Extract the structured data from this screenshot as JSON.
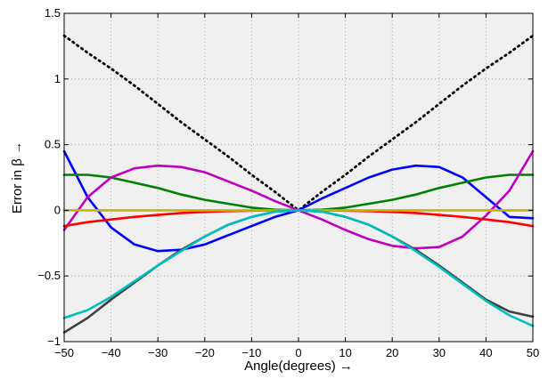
{
  "chart_data": {
    "type": "line",
    "xlabel": "Angle(degrees) →",
    "ylabel": "Error in β →",
    "xlim": [
      -50,
      50
    ],
    "ylim": [
      -1,
      1.5
    ],
    "xticks": [
      -50,
      -40,
      -30,
      -20,
      -10,
      0,
      10,
      20,
      30,
      40,
      50
    ],
    "yticks": [
      -1,
      -0.5,
      0,
      0.5,
      1,
      1.5
    ],
    "xtick_labels": [
      "−50",
      "−40",
      "−30",
      "−20",
      "−10",
      "0",
      "10",
      "20",
      "30",
      "40",
      "50"
    ],
    "ytick_labels": [
      "−1",
      "−0.5",
      "0",
      "0.5",
      "1",
      "1.5"
    ],
    "grid": true,
    "background": "#f0f0f0",
    "series": [
      {
        "color": "#000000",
        "dash": "dotted",
        "x": [
          -50,
          -45,
          -40,
          -35,
          -30,
          -25,
          -20,
          -15,
          -10,
          -5,
          0,
          5,
          10,
          15,
          20,
          25,
          30,
          35,
          40,
          45,
          50
        ],
        "y": [
          1.33,
          1.2,
          1.08,
          0.95,
          0.81,
          0.67,
          0.54,
          0.41,
          0.27,
          0.14,
          0.0,
          0.14,
          0.27,
          0.41,
          0.54,
          0.67,
          0.81,
          0.95,
          1.08,
          1.2,
          1.33
        ]
      },
      {
        "color": "#0000ff",
        "x": [
          -50,
          -45,
          -40,
          -35,
          -30,
          -25,
          -20,
          -15,
          -10,
          -5,
          0,
          5,
          10,
          15,
          20,
          25,
          30,
          35,
          40,
          45,
          50
        ],
        "y": [
          0.45,
          0.1,
          -0.13,
          -0.26,
          -0.31,
          -0.3,
          -0.26,
          -0.19,
          -0.12,
          -0.05,
          0.0,
          0.09,
          0.17,
          0.25,
          0.31,
          0.34,
          0.33,
          0.25,
          0.1,
          -0.05,
          -0.06
        ]
      },
      {
        "color": "#008000",
        "x": [
          -50,
          -45,
          -40,
          -35,
          -30,
          -25,
          -20,
          -15,
          -10,
          -5,
          0,
          5,
          10,
          15,
          20,
          25,
          30,
          35,
          40,
          45,
          50
        ],
        "y": [
          0.27,
          0.27,
          0.25,
          0.21,
          0.17,
          0.12,
          0.08,
          0.05,
          0.02,
          0.005,
          0.0,
          0.005,
          0.02,
          0.05,
          0.08,
          0.12,
          0.17,
          0.21,
          0.25,
          0.27,
          0.27
        ]
      },
      {
        "color": "#bf00bf",
        "x": [
          -50,
          -45,
          -40,
          -35,
          -30,
          -25,
          -20,
          -15,
          -10,
          -5,
          0,
          5,
          10,
          15,
          20,
          25,
          30,
          35,
          40,
          45,
          50
        ],
        "y": [
          -0.15,
          0.1,
          0.25,
          0.32,
          0.34,
          0.33,
          0.29,
          0.22,
          0.15,
          0.07,
          0.0,
          -0.07,
          -0.15,
          -0.22,
          -0.27,
          -0.29,
          -0.28,
          -0.2,
          -0.04,
          0.15,
          0.45
        ]
      },
      {
        "color": "#ff0000",
        "x": [
          -50,
          -45,
          -40,
          -35,
          -30,
          -25,
          -20,
          -15,
          -10,
          -5,
          0,
          5,
          10,
          15,
          20,
          25,
          30,
          35,
          40,
          45,
          50
        ],
        "y": [
          -0.12,
          -0.09,
          -0.07,
          -0.05,
          -0.035,
          -0.02,
          -0.012,
          -0.006,
          -0.003,
          -0.001,
          0.0,
          -0.001,
          -0.003,
          -0.006,
          -0.012,
          -0.02,
          -0.035,
          -0.05,
          -0.07,
          -0.09,
          -0.12
        ]
      },
      {
        "color": "#c8b400",
        "x": [
          -50,
          50
        ],
        "y": [
          0.0,
          0.0
        ]
      },
      {
        "color": "#404040",
        "x": [
          -50,
          -45,
          -40,
          -35,
          -30,
          -25,
          -20,
          -15,
          -10,
          -5,
          0,
          5,
          10,
          15,
          20,
          25,
          30,
          35,
          40,
          45,
          50
        ],
        "y": [
          -0.93,
          -0.82,
          -0.68,
          -0.55,
          -0.42,
          -0.3,
          -0.2,
          -0.11,
          -0.05,
          -0.01,
          0.0,
          -0.01,
          -0.05,
          -0.11,
          -0.2,
          -0.3,
          -0.42,
          -0.55,
          -0.68,
          -0.77,
          -0.81
        ]
      },
      {
        "color": "#00bfbf",
        "x": [
          -50,
          -45,
          -40,
          -35,
          -30,
          -25,
          -20,
          -15,
          -10,
          -5,
          0,
          5,
          10,
          15,
          20,
          25,
          30,
          35,
          40,
          45,
          50
        ],
        "y": [
          -0.82,
          -0.76,
          -0.66,
          -0.54,
          -0.42,
          -0.31,
          -0.2,
          -0.11,
          -0.05,
          -0.01,
          0.0,
          -0.01,
          -0.05,
          -0.11,
          -0.2,
          -0.31,
          -0.43,
          -0.56,
          -0.69,
          -0.8,
          -0.88
        ]
      }
    ]
  }
}
